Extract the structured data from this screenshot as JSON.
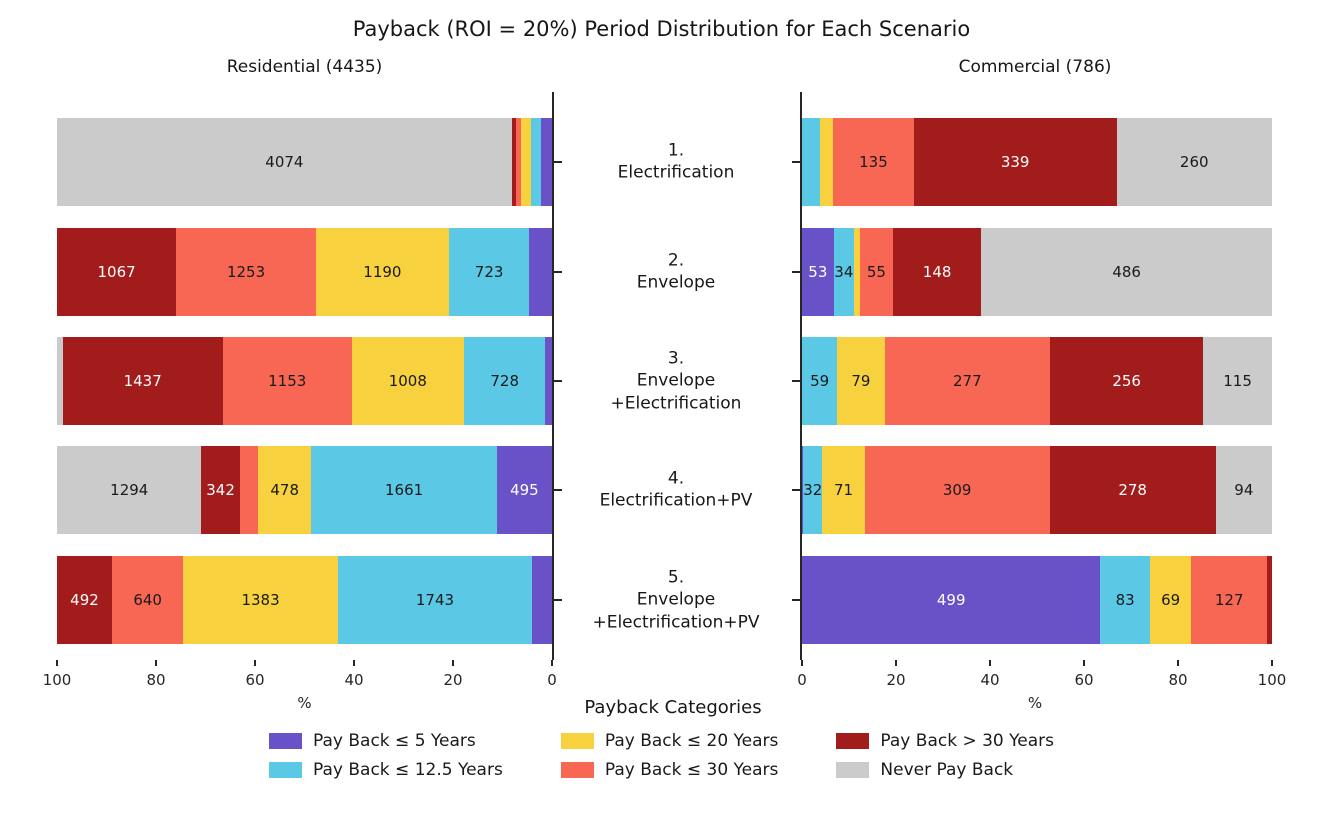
{
  "chart_data": {
    "type": "bar",
    "variant": "horizontal stacked bars, mirrored (population-pyramid style), center category labels",
    "title": "Payback (ROI = 20%) Period Distribution for Each Scenario",
    "categories": [
      "1. Electrification",
      "2. Envelope",
      "3. Envelope +Electrification",
      "4. Electrification+PV",
      "5. Envelope +Electrification+PV"
    ],
    "category_display_lines": [
      [
        "1.",
        "Electrification"
      ],
      [
        "2.",
        "Envelope"
      ],
      [
        "3.",
        "Envelope",
        "+Electrification"
      ],
      [
        "4.",
        "Electrification+PV"
      ],
      [
        "5.",
        "Envelope",
        "+Electrification+PV"
      ]
    ],
    "segment_order": [
      "le5",
      "le12_5",
      "le20",
      "le30",
      "gt30",
      "never"
    ],
    "colors": {
      "le5": "#6952C8",
      "le12_5": "#5BC8E6",
      "le20": "#F7D23E",
      "le30": "#F76753",
      "gt30": "#A31C1C",
      "never": "#CBCBCB"
    },
    "legend": {
      "title": "Payback Categories",
      "position": "bottom center, 3 columns x 2 rows",
      "items": [
        {
          "key": "le5",
          "label": "Pay Back ≤ 5 Years"
        },
        {
          "key": "le12_5",
          "label": "Pay Back ≤ 12.5 Years"
        },
        {
          "key": "le20",
          "label": "Pay Back ≤ 20 Years"
        },
        {
          "key": "le30",
          "label": "Pay Back ≤ 30 Years"
        },
        {
          "key": "gt30",
          "label": "Pay Back > 30 Years"
        },
        {
          "key": "never",
          "label": "Never Pay Back"
        }
      ]
    },
    "subplots": [
      {
        "title": "Residential (4435)",
        "side": "left",
        "total": 4435,
        "xlabel": "%",
        "xlim": [
          0,
          100
        ],
        "xticks": [
          100,
          80,
          60,
          40,
          20,
          0
        ],
        "rows": [
          {
            "segments": [
              {
                "key": "le5",
                "value": 97,
                "label": ""
              },
              {
                "key": "le12_5",
                "value": 95,
                "label": ""
              },
              {
                "key": "le20",
                "value": 85,
                "label": ""
              },
              {
                "key": "le30",
                "value": 50,
                "label": ""
              },
              {
                "key": "gt30",
                "value": 34,
                "label": ""
              },
              {
                "key": "never",
                "value": 4074,
                "label": "4074"
              }
            ]
          },
          {
            "segments": [
              {
                "key": "le5",
                "value": 202,
                "label": ""
              },
              {
                "key": "le12_5",
                "value": 723,
                "label": "723"
              },
              {
                "key": "le20",
                "value": 1190,
                "label": "1190"
              },
              {
                "key": "le30",
                "value": 1253,
                "label": "1253"
              },
              {
                "key": "gt30",
                "value": 1067,
                "label": "1067"
              },
              {
                "key": "never",
                "value": 0,
                "label": ""
              }
            ]
          },
          {
            "segments": [
              {
                "key": "le5",
                "value": 60,
                "label": ""
              },
              {
                "key": "le12_5",
                "value": 728,
                "label": "728"
              },
              {
                "key": "le20",
                "value": 1008,
                "label": "1008"
              },
              {
                "key": "le30",
                "value": 1153,
                "label": "1153"
              },
              {
                "key": "gt30",
                "value": 1437,
                "label": "1437"
              },
              {
                "key": "never",
                "value": 49,
                "label": ""
              }
            ]
          },
          {
            "segments": [
              {
                "key": "le5",
                "value": 495,
                "label": "495"
              },
              {
                "key": "le12_5",
                "value": 1661,
                "label": "1661"
              },
              {
                "key": "le20",
                "value": 478,
                "label": "478"
              },
              {
                "key": "le30",
                "value": 165,
                "label": ""
              },
              {
                "key": "gt30",
                "value": 342,
                "label": "342"
              },
              {
                "key": "never",
                "value": 1294,
                "label": "1294"
              }
            ]
          },
          {
            "segments": [
              {
                "key": "le5",
                "value": 177,
                "label": ""
              },
              {
                "key": "le12_5",
                "value": 1743,
                "label": "1743"
              },
              {
                "key": "le20",
                "value": 1383,
                "label": "1383"
              },
              {
                "key": "le30",
                "value": 640,
                "label": "640"
              },
              {
                "key": "gt30",
                "value": 492,
                "label": "492"
              },
              {
                "key": "never",
                "value": 0,
                "label": ""
              }
            ]
          }
        ]
      },
      {
        "title": "Commercial (786)",
        "side": "right",
        "total": 786,
        "xlabel": "%",
        "xlim": [
          0,
          100
        ],
        "xticks": [
          0,
          20,
          40,
          60,
          80,
          100
        ],
        "rows": [
          {
            "segments": [
              {
                "key": "le5",
                "value": 0,
                "label": ""
              },
              {
                "key": "le12_5",
                "value": 30,
                "label": ""
              },
              {
                "key": "le20",
                "value": 22,
                "label": ""
              },
              {
                "key": "le30",
                "value": 135,
                "label": "135"
              },
              {
                "key": "gt30",
                "value": 339,
                "label": "339"
              },
              {
                "key": "never",
                "value": 260,
                "label": "260"
              }
            ]
          },
          {
            "segments": [
              {
                "key": "le5",
                "value": 53,
                "label": "53"
              },
              {
                "key": "le12_5",
                "value": 34,
                "label": "34"
              },
              {
                "key": "le20",
                "value": 10,
                "label": ""
              },
              {
                "key": "le30",
                "value": 55,
                "label": "55"
              },
              {
                "key": "gt30",
                "value": 148,
                "label": "148"
              },
              {
                "key": "never",
                "value": 486,
                "label": "486"
              }
            ]
          },
          {
            "segments": [
              {
                "key": "le5",
                "value": 0,
                "label": ""
              },
              {
                "key": "le12_5",
                "value": 59,
                "label": "59"
              },
              {
                "key": "le20",
                "value": 79,
                "label": "79"
              },
              {
                "key": "le30",
                "value": 277,
                "label": "277"
              },
              {
                "key": "gt30",
                "value": 256,
                "label": "256"
              },
              {
                "key": "never",
                "value": 115,
                "label": "115"
              }
            ]
          },
          {
            "segments": [
              {
                "key": "le5",
                "value": 2,
                "label": ""
              },
              {
                "key": "le12_5",
                "value": 32,
                "label": "32"
              },
              {
                "key": "le20",
                "value": 71,
                "label": "71"
              },
              {
                "key": "le30",
                "value": 309,
                "label": "309"
              },
              {
                "key": "gt30",
                "value": 278,
                "label": "278"
              },
              {
                "key": "never",
                "value": 94,
                "label": "94"
              }
            ]
          },
          {
            "segments": [
              {
                "key": "le5",
                "value": 499,
                "label": "499"
              },
              {
                "key": "le12_5",
                "value": 83,
                "label": "83"
              },
              {
                "key": "le20",
                "value": 69,
                "label": "69"
              },
              {
                "key": "le30",
                "value": 127,
                "label": "127"
              },
              {
                "key": "gt30",
                "value": 8,
                "label": ""
              },
              {
                "key": "never",
                "value": 0,
                "label": ""
              }
            ]
          }
        ]
      }
    ]
  }
}
